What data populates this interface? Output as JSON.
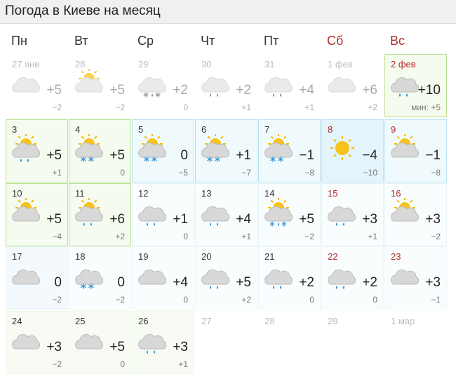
{
  "title": "Погода в Киеве на месяц",
  "weekdays": [
    "Пн",
    "Вт",
    "Ср",
    "Чт",
    "Пт",
    "Сб",
    "Вс"
  ],
  "weeks": [
    [
      {
        "date": "27 янв",
        "high": "+5",
        "low": "−2",
        "icon": "cloud"
      },
      {
        "date": "28",
        "high": "+5",
        "low": "−2",
        "icon": "sun-cloud"
      },
      {
        "date": "29",
        "high": "+2",
        "low": "0",
        "icon": "cloud-mix"
      },
      {
        "date": "30",
        "high": "+2",
        "low": "+1",
        "icon": "cloud-rain"
      },
      {
        "date": "31",
        "high": "+4",
        "low": "+1",
        "icon": "cloud-rain"
      },
      {
        "date": "1 фев",
        "high": "+6",
        "low": "+2",
        "icon": "cloud"
      },
      {
        "date": "2 фев",
        "high": "+10",
        "low": "мин: +5",
        "icon": "cloud-rain",
        "bg": "#f5fbee",
        "border": "#b9df92"
      }
    ],
    [
      {
        "date": "3",
        "high": "+5",
        "low": "+1",
        "icon": "sun-cloud-rain",
        "bg": "#f5fbee",
        "border": "#b9df92"
      },
      {
        "date": "4",
        "high": "+5",
        "low": "0",
        "icon": "sun-cloud-snow",
        "bg": "#f5fbee",
        "border": "#b9df92"
      },
      {
        "date": "5",
        "high": "0",
        "low": "−5",
        "icon": "sun-cloud-snow",
        "bg": "#f0fafd",
        "border": "#b8e4f2"
      },
      {
        "date": "6",
        "high": "+1",
        "low": "−7",
        "icon": "sun-cloud-snow",
        "bg": "#f0fafd",
        "border": "#b8e4f2"
      },
      {
        "date": "7",
        "high": "−1",
        "low": "−8",
        "icon": "sun-cloud-snow",
        "bg": "#f0fafd",
        "border": "#b8e4f2"
      },
      {
        "date": "8",
        "high": "−4",
        "low": "−10",
        "icon": "sun",
        "bg": "#e3f4fb",
        "border": "#b8e4f2"
      },
      {
        "date": "9",
        "high": "−1",
        "low": "−8",
        "icon": "sun-cloud",
        "bg": "#f0fafd",
        "border": "#b8e4f2"
      }
    ],
    [
      {
        "date": "10",
        "high": "+5",
        "low": "−4",
        "icon": "sun-cloud",
        "bg": "#f5fbee",
        "border": "#b9df92"
      },
      {
        "date": "11",
        "high": "+6",
        "low": "+2",
        "icon": "sun-cloud-rain",
        "bg": "#f5fbee",
        "border": "#b9df92"
      },
      {
        "date": "12",
        "high": "+1",
        "low": "0",
        "icon": "cloud-rain",
        "bg": "#f9fdfe",
        "border": "#e3f3f8"
      },
      {
        "date": "13",
        "high": "+4",
        "low": "+1",
        "icon": "cloud-rain",
        "bg": "#f9fdfe",
        "border": "#e3f3f8"
      },
      {
        "date": "14",
        "high": "+5",
        "low": "−2",
        "icon": "sun-cloud-mix",
        "bg": "#f9fdfe",
        "border": "#e3f3f8"
      },
      {
        "date": "15",
        "high": "+3",
        "low": "+1",
        "icon": "cloud-rain",
        "bg": "#f9fdfe",
        "border": "#e3f3f8"
      },
      {
        "date": "16",
        "high": "+3",
        "low": "−2",
        "icon": "sun-cloud",
        "bg": "#f9fdfe",
        "border": "#e3f3f8"
      }
    ],
    [
      {
        "date": "17",
        "high": "0",
        "low": "−2",
        "icon": "cloud",
        "bg": "#f3f9fc",
        "border": "#e3f3f8"
      },
      {
        "date": "18",
        "high": "0",
        "low": "−2",
        "icon": "cloud-snow",
        "bg": "#f9fdfe",
        "border": "#eef7fa"
      },
      {
        "date": "19",
        "high": "+4",
        "low": "0",
        "icon": "cloud",
        "bg": "#f9fdfe",
        "border": "#eef7fa"
      },
      {
        "date": "20",
        "high": "+5",
        "low": "+2",
        "icon": "cloud-rain",
        "bg": "#f9fdfe",
        "border": "#eef7fa"
      },
      {
        "date": "21",
        "high": "+2",
        "low": "0",
        "icon": "cloud-rain",
        "bg": "#f9fdfe",
        "border": "#eef7fa"
      },
      {
        "date": "22",
        "high": "+2",
        "low": "0",
        "icon": "cloud-rain",
        "bg": "#f9fdfe",
        "border": "#eef7fa"
      },
      {
        "date": "23",
        "high": "+3",
        "low": "−1",
        "icon": "cloud",
        "bg": "#f9fdfe",
        "border": "#eef7fa"
      }
    ],
    [
      {
        "date": "24",
        "high": "+3",
        "low": "−2",
        "icon": "cloud",
        "bg": "#f7fbf3",
        "border": "#eef6e6"
      },
      {
        "date": "25",
        "high": "+5",
        "low": "0",
        "icon": "cloud",
        "bg": "#f7fbf3",
        "border": "#eef6e6"
      },
      {
        "date": "26",
        "high": "+3",
        "low": "+1",
        "icon": "cloud-rain",
        "bg": "#f7fbf3",
        "border": "#eef6e6"
      },
      {
        "date": "27"
      },
      {
        "date": "28"
      },
      {
        "date": "29"
      },
      {
        "date": "1 мар"
      }
    ]
  ]
}
